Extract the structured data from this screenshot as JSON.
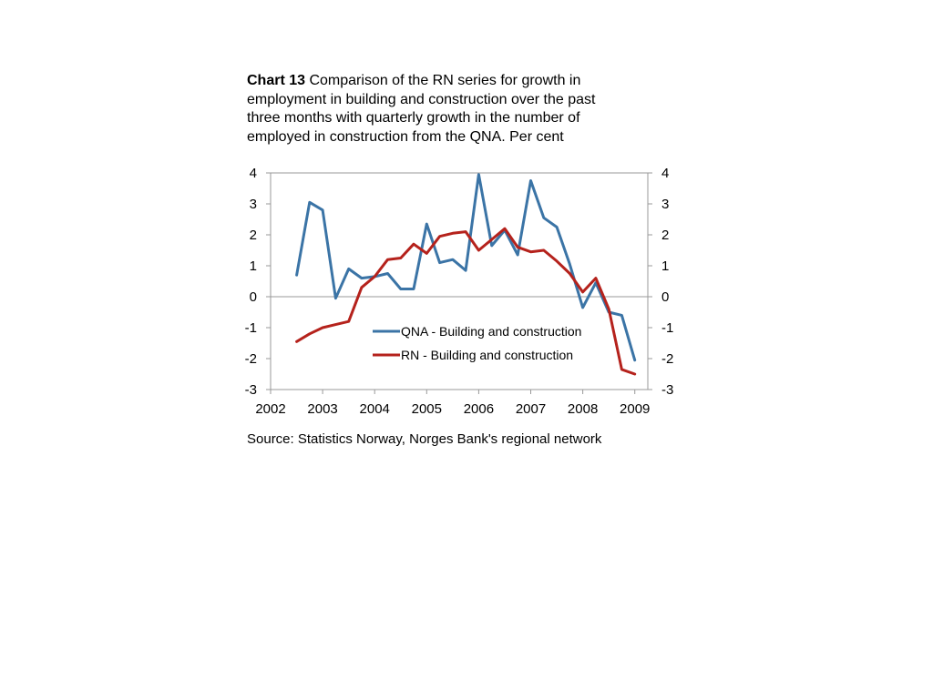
{
  "title": {
    "bold": "Chart 13",
    "text": " Comparison of the RN series for growth in employment in building and construction over the past three months with quarterly growth in the number of employed in construction from the QNA. Per cent"
  },
  "source": "Source: Statistics Norway, Norges Bank's regional network",
  "chart_data": {
    "type": "line",
    "x_ticks": [
      "2002",
      "2003",
      "2004",
      "2005",
      "2006",
      "2007",
      "2008",
      "2009"
    ],
    "y_ticks": [
      "4",
      "3",
      "2",
      "1",
      "0",
      "-1",
      "-2",
      "-3"
    ],
    "xlim": [
      2002,
      2009.25
    ],
    "ylim": [
      -3,
      4
    ],
    "grid": false,
    "legend_position": "center",
    "series": [
      {
        "name": "QNA - Building and construction",
        "color": "#3b74a6",
        "x": [
          2002.5,
          2002.75,
          2003.0,
          2003.25,
          2003.5,
          2003.75,
          2004.0,
          2004.25,
          2004.5,
          2004.75,
          2005.0,
          2005.25,
          2005.5,
          2005.75,
          2006.0,
          2006.25,
          2006.5,
          2006.75,
          2007.0,
          2007.25,
          2007.5,
          2007.75,
          2008.0,
          2008.25,
          2008.5,
          2008.75,
          2009.0
        ],
        "y": [
          0.7,
          3.05,
          2.8,
          -0.05,
          0.9,
          0.6,
          0.65,
          0.75,
          0.25,
          0.25,
          2.35,
          1.1,
          1.2,
          0.85,
          3.95,
          1.65,
          2.15,
          1.35,
          3.75,
          2.55,
          2.25,
          1.05,
          -0.35,
          0.45,
          -0.5,
          -0.6,
          -2.05
        ]
      },
      {
        "name": "RN - Building and construction",
        "color": "#b5221c",
        "x": [
          2002.5,
          2002.75,
          2003.0,
          2003.25,
          2003.5,
          2003.75,
          2004.0,
          2004.25,
          2004.5,
          2004.75,
          2005.0,
          2005.25,
          2005.5,
          2005.75,
          2006.0,
          2006.25,
          2006.5,
          2006.75,
          2007.0,
          2007.25,
          2007.5,
          2007.75,
          2008.0,
          2008.25,
          2008.5,
          2008.75,
          2009.0
        ],
        "y": [
          -1.45,
          -1.2,
          -1.0,
          -0.9,
          -0.8,
          0.3,
          0.65,
          1.2,
          1.25,
          1.7,
          1.4,
          1.95,
          2.05,
          2.1,
          1.5,
          1.85,
          2.2,
          1.6,
          1.45,
          1.5,
          1.15,
          0.75,
          0.15,
          0.6,
          -0.4,
          -2.35,
          -2.5
        ]
      }
    ]
  }
}
